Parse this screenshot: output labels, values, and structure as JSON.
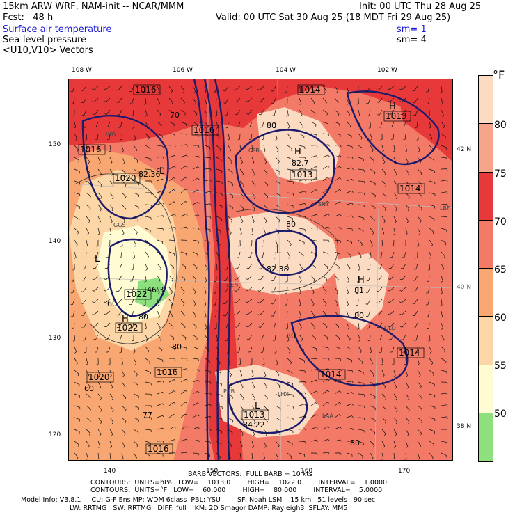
{
  "header": {
    "model_line": "15km ARW WRF, NAM-init -- NCAR/MMM",
    "init_line": "Init: 00 UTC Thu 28 Aug 25",
    "fcst_line": "Fcst:   48 h",
    "valid_line": "Valid: 00 UTC Sat 30 Aug 25 (18 MDT Fri 29 Aug 25)",
    "field1": "Surface air temperature",
    "field1_sm": "sm= 1",
    "field2": "Sea-level pressure",
    "field2_sm": "sm= 4",
    "field3": "<U10,V10> Vectors"
  },
  "top_ticks": [
    "108 W",
    "106 W",
    "104 W",
    "102 W"
  ],
  "left_ticks": [
    "150",
    "140",
    "130",
    "120"
  ],
  "bottom_ticks": [
    "140",
    "150",
    "160",
    "170"
  ],
  "lat_labels": [
    "42 N",
    "40 N",
    "38 N"
  ],
  "legend": {
    "unit": "°F",
    "labels": [
      "80",
      "75",
      "70",
      "65",
      "60",
      "55",
      "50"
    ],
    "colors": [
      "#fbdcc2",
      "#f6a58a",
      "#e8393a",
      "#f47a68",
      "#f9a772",
      "#fcd6a6",
      "#fffbd2",
      "#8de07d"
    ]
  },
  "map_labels": {
    "pressure": [
      "1016",
      "1014",
      "1016",
      "1016",
      "1020",
      "1013",
      "1022",
      "1022",
      "1014",
      "1014",
      "1016",
      "1020",
      "1013",
      "1014",
      "1016",
      "1013"
    ],
    "highs_lows": [
      "H",
      "L",
      "H",
      "H",
      "L",
      "H",
      "L",
      "L"
    ],
    "temps": [
      "70",
      "80",
      "82.36",
      "80",
      "82.7",
      "82.38",
      "81",
      "80",
      "80",
      "84.22",
      "60",
      "77",
      "80",
      "46.3",
      "80",
      "60",
      "80"
    ],
    "stations": [
      "RIW",
      "CPR",
      "LBF",
      "SNY",
      "DEN",
      "GLD",
      "PUB",
      "LAA",
      "LHX",
      "GGS"
    ]
  },
  "footer": {
    "barb_line": "BARB VECTORS:  FULL BARB = 10 kts",
    "cont1": "CONTOURS:  UNITS=hPa   LOW=    1013.0        HIGH=    1022.0        INTERVAL=    1.0000",
    "cont2": "CONTOURS:  UNITS=°F   LOW=    60.000        HIGH=    80.000        INTERVAL=    5.0000",
    "model_info": "Model Info: V3.8.1     CU: G-F Ens MP: WDM 6class  PBL: YSU        SF: Noah LSM    15 km   51 levels   90 sec",
    "model_info2": "LW: RRTMG   SW: RRTMG   DIFF: full    KM: 2D Smagor DAMP: Rayleigh3  SFLAY: MM5"
  }
}
